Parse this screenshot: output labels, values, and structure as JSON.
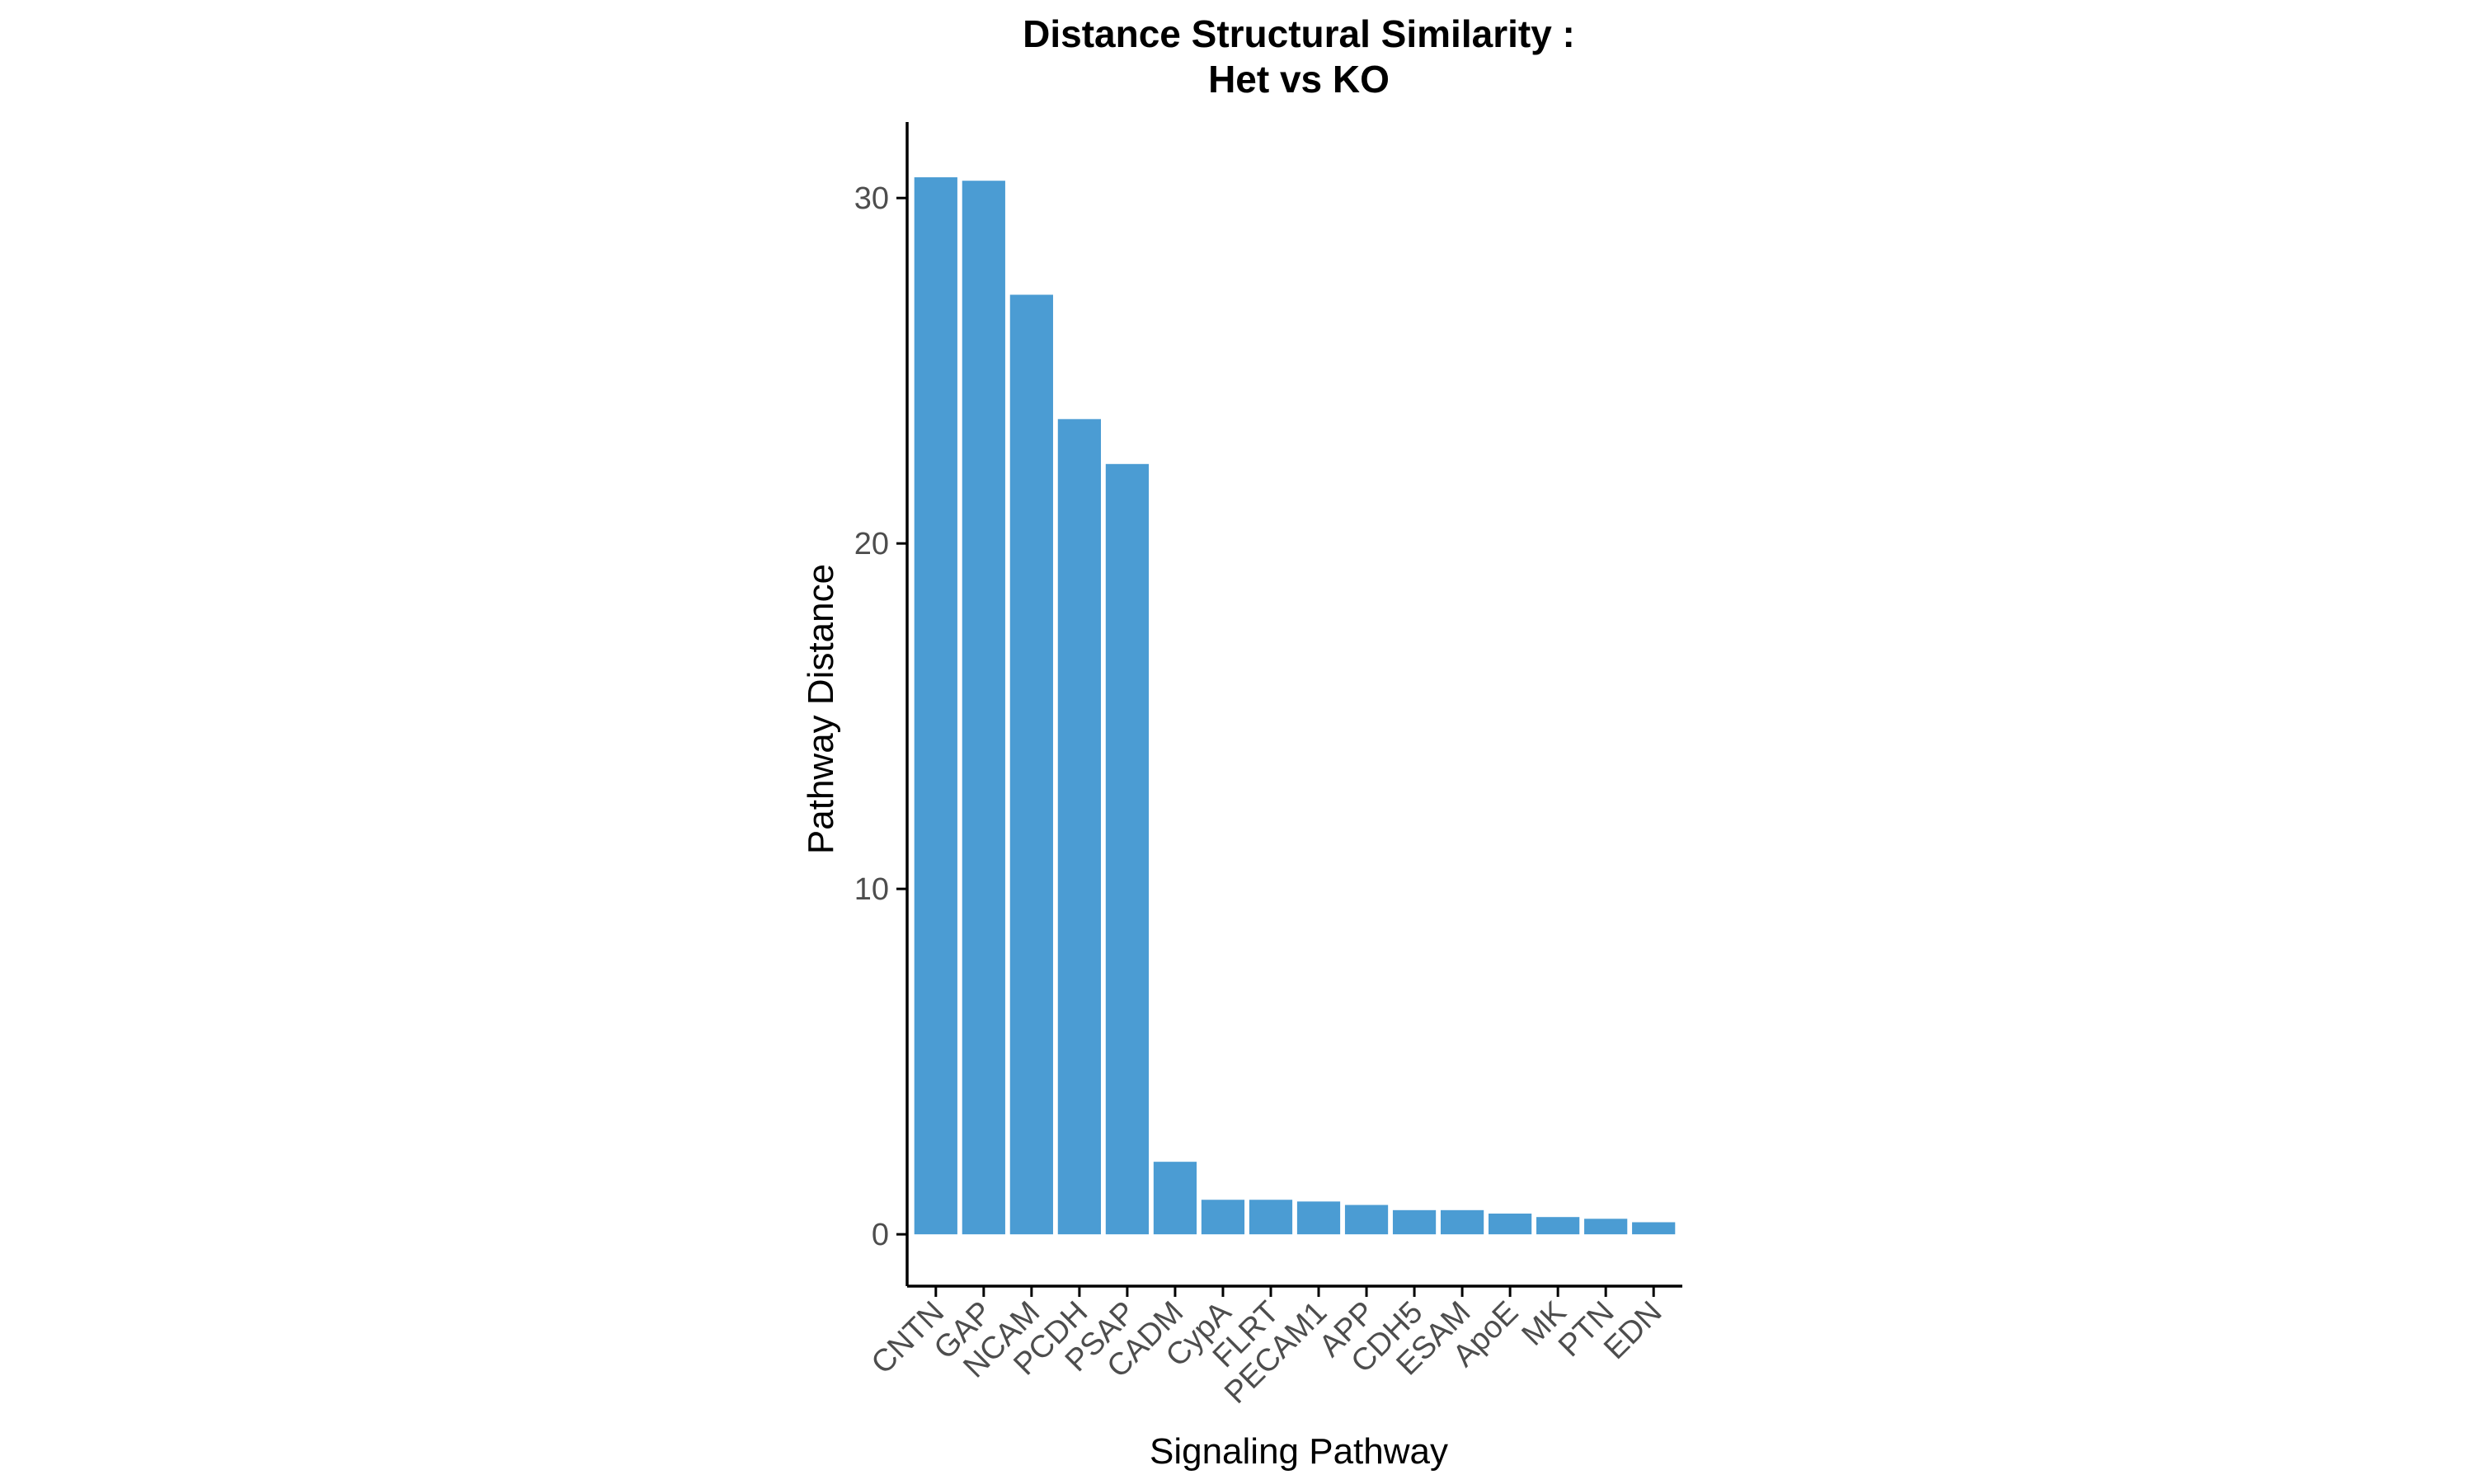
{
  "chart_data": {
    "type": "bar",
    "title_lines": [
      "Distance Structural Similarity :",
      "Het vs KO"
    ],
    "xlabel": "Signaling Pathway",
    "ylabel": "Pathway Distance",
    "categories": [
      "CNTN",
      "GAP",
      "NCAM",
      "PCDH",
      "PSAP",
      "CADM",
      "CypA",
      "FLRT",
      "PECAM1",
      "APP",
      "CDH5",
      "ESAM",
      "ApoE",
      "MK",
      "PTN",
      "EDN"
    ],
    "values": [
      30.6,
      30.5,
      27.2,
      23.6,
      22.3,
      2.1,
      1.0,
      1.0,
      0.95,
      0.85,
      0.7,
      0.7,
      0.6,
      0.5,
      0.45,
      0.35
    ],
    "yticks": [
      0,
      10,
      20,
      30
    ],
    "ylim": [
      -1.5,
      32.2
    ],
    "bar_color": "#4b9cd3",
    "grid": false,
    "legend": false
  }
}
